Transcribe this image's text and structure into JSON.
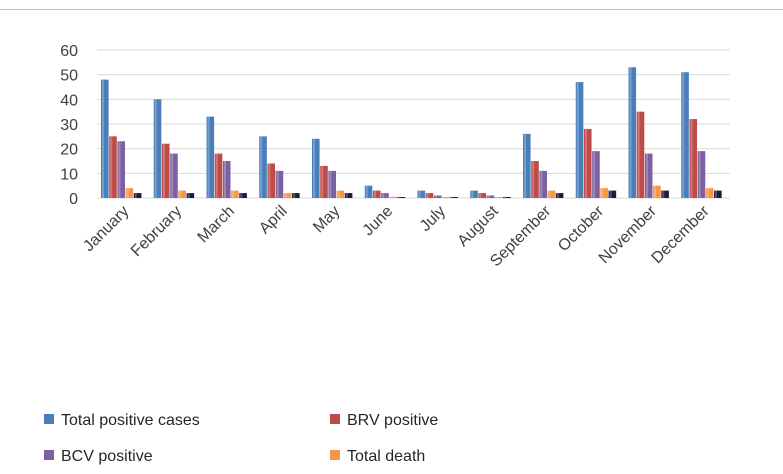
{
  "chart_data": {
    "type": "bar",
    "title": "",
    "xlabel": "",
    "ylabel": "",
    "ylim": [
      0,
      60
    ],
    "yticks": [
      0,
      10,
      20,
      30,
      40,
      50,
      60
    ],
    "grid": "horizontal",
    "legend_position": "bottom",
    "categories": [
      "January",
      "February",
      "March",
      "April",
      "May",
      "June",
      "July",
      "August",
      "September",
      "October",
      "November",
      "December"
    ],
    "series": [
      {
        "name": "Total positive cases",
        "color": "#4a7ebb",
        "values": [
          48,
          40,
          33,
          25,
          24,
          5,
          3,
          3,
          26,
          47,
          53,
          51
        ]
      },
      {
        "name": "BRV positive",
        "color": "#be4b48",
        "values": [
          25,
          22,
          18,
          14,
          13,
          3,
          2,
          2,
          15,
          28,
          35,
          32
        ]
      },
      {
        "name": "BCV positive",
        "color": "#7d60a0",
        "values": [
          23,
          18,
          15,
          11,
          11,
          2,
          1,
          1,
          11,
          19,
          18,
          19
        ]
      },
      {
        "name": "Total death",
        "color": "#f79646",
        "values": [
          4,
          3,
          3,
          2,
          3,
          0.5,
          0.3,
          0.3,
          3,
          4,
          5,
          4
        ]
      },
      {
        "name": "",
        "color": "#1f1a3f",
        "values": [
          2,
          2,
          2,
          2,
          2,
          0.3,
          0.3,
          0.3,
          2,
          3,
          3,
          3
        ]
      }
    ]
  }
}
